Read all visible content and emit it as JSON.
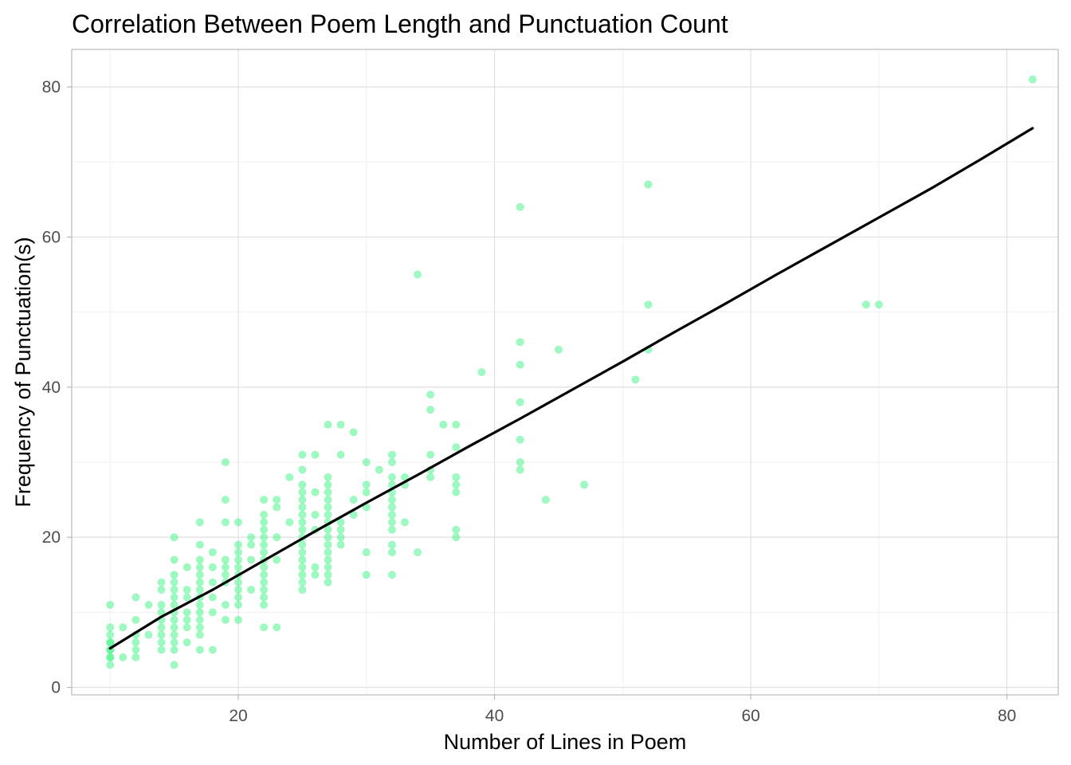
{
  "chart_data": {
    "type": "scatter",
    "title": "Correlation Between Poem Length and Punctuation Count",
    "xlabel": "Number of Lines in Poem",
    "ylabel": "Frequency of Punctuation(s)",
    "xlim": [
      7,
      84
    ],
    "ylim": [
      -1,
      85
    ],
    "x_ticks": [
      20,
      40,
      60,
      80
    ],
    "y_ticks": [
      0,
      20,
      40,
      60,
      80
    ],
    "x_tick_labels": [
      "20",
      "40",
      "60",
      "80"
    ],
    "y_tick_labels": [
      "0",
      "20",
      "40",
      "60",
      "80"
    ],
    "grid": true,
    "legend": "none",
    "point_color": "#3df584",
    "point_opacity": 0.5,
    "trend_color": "#000000",
    "points": [
      {
        "x": 10,
        "y": 3
      },
      {
        "x": 10,
        "y": 4
      },
      {
        "x": 10,
        "y": 5
      },
      {
        "x": 10,
        "y": 6
      },
      {
        "x": 10,
        "y": 7
      },
      {
        "x": 10,
        "y": 8
      },
      {
        "x": 10,
        "y": 11
      },
      {
        "x": 10,
        "y": 6
      },
      {
        "x": 10,
        "y": 5
      },
      {
        "x": 10,
        "y": 4
      },
      {
        "x": 11,
        "y": 8
      },
      {
        "x": 11,
        "y": 4
      },
      {
        "x": 12,
        "y": 12
      },
      {
        "x": 12,
        "y": 9
      },
      {
        "x": 12,
        "y": 7
      },
      {
        "x": 12,
        "y": 6
      },
      {
        "x": 12,
        "y": 5
      },
      {
        "x": 12,
        "y": 4
      },
      {
        "x": 13,
        "y": 11
      },
      {
        "x": 13,
        "y": 7
      },
      {
        "x": 14,
        "y": 14
      },
      {
        "x": 14,
        "y": 13
      },
      {
        "x": 14,
        "y": 11
      },
      {
        "x": 14,
        "y": 10
      },
      {
        "x": 14,
        "y": 9
      },
      {
        "x": 14,
        "y": 8
      },
      {
        "x": 14,
        "y": 7
      },
      {
        "x": 14,
        "y": 6
      },
      {
        "x": 14,
        "y": 5
      },
      {
        "x": 15,
        "y": 20
      },
      {
        "x": 15,
        "y": 17
      },
      {
        "x": 15,
        "y": 15
      },
      {
        "x": 15,
        "y": 14
      },
      {
        "x": 15,
        "y": 13
      },
      {
        "x": 15,
        "y": 12
      },
      {
        "x": 15,
        "y": 11
      },
      {
        "x": 15,
        "y": 10
      },
      {
        "x": 15,
        "y": 9
      },
      {
        "x": 15,
        "y": 8
      },
      {
        "x": 15,
        "y": 7
      },
      {
        "x": 15,
        "y": 6
      },
      {
        "x": 15,
        "y": 5
      },
      {
        "x": 15,
        "y": 3
      },
      {
        "x": 16,
        "y": 16
      },
      {
        "x": 16,
        "y": 13
      },
      {
        "x": 16,
        "y": 12
      },
      {
        "x": 16,
        "y": 10
      },
      {
        "x": 16,
        "y": 9
      },
      {
        "x": 16,
        "y": 8
      },
      {
        "x": 16,
        "y": 6
      },
      {
        "x": 17,
        "y": 22
      },
      {
        "x": 17,
        "y": 19
      },
      {
        "x": 17,
        "y": 17
      },
      {
        "x": 17,
        "y": 16
      },
      {
        "x": 17,
        "y": 15
      },
      {
        "x": 17,
        "y": 14
      },
      {
        "x": 17,
        "y": 13
      },
      {
        "x": 17,
        "y": 12
      },
      {
        "x": 17,
        "y": 11
      },
      {
        "x": 17,
        "y": 10
      },
      {
        "x": 17,
        "y": 9
      },
      {
        "x": 17,
        "y": 8
      },
      {
        "x": 17,
        "y": 7
      },
      {
        "x": 17,
        "y": 5
      },
      {
        "x": 18,
        "y": 18
      },
      {
        "x": 18,
        "y": 16
      },
      {
        "x": 18,
        "y": 14
      },
      {
        "x": 18,
        "y": 12
      },
      {
        "x": 18,
        "y": 10
      },
      {
        "x": 18,
        "y": 5
      },
      {
        "x": 19,
        "y": 30
      },
      {
        "x": 19,
        "y": 25
      },
      {
        "x": 19,
        "y": 22
      },
      {
        "x": 19,
        "y": 17
      },
      {
        "x": 19,
        "y": 16
      },
      {
        "x": 19,
        "y": 15
      },
      {
        "x": 19,
        "y": 14
      },
      {
        "x": 19,
        "y": 11
      },
      {
        "x": 19,
        "y": 9
      },
      {
        "x": 20,
        "y": 22
      },
      {
        "x": 20,
        "y": 19
      },
      {
        "x": 20,
        "y": 18
      },
      {
        "x": 20,
        "y": 17
      },
      {
        "x": 20,
        "y": 16
      },
      {
        "x": 20,
        "y": 15
      },
      {
        "x": 20,
        "y": 14
      },
      {
        "x": 20,
        "y": 13
      },
      {
        "x": 20,
        "y": 12
      },
      {
        "x": 20,
        "y": 11
      },
      {
        "x": 20,
        "y": 9
      },
      {
        "x": 21,
        "y": 20
      },
      {
        "x": 21,
        "y": 19
      },
      {
        "x": 21,
        "y": 17
      },
      {
        "x": 21,
        "y": 13
      },
      {
        "x": 22,
        "y": 25
      },
      {
        "x": 22,
        "y": 23
      },
      {
        "x": 22,
        "y": 22
      },
      {
        "x": 22,
        "y": 21
      },
      {
        "x": 22,
        "y": 20
      },
      {
        "x": 22,
        "y": 19
      },
      {
        "x": 22,
        "y": 18
      },
      {
        "x": 22,
        "y": 17
      },
      {
        "x": 22,
        "y": 16
      },
      {
        "x": 22,
        "y": 15
      },
      {
        "x": 22,
        "y": 14
      },
      {
        "x": 22,
        "y": 13
      },
      {
        "x": 22,
        "y": 12
      },
      {
        "x": 22,
        "y": 11
      },
      {
        "x": 22,
        "y": 8
      },
      {
        "x": 23,
        "y": 25
      },
      {
        "x": 23,
        "y": 24
      },
      {
        "x": 23,
        "y": 20
      },
      {
        "x": 23,
        "y": 17
      },
      {
        "x": 23,
        "y": 8
      },
      {
        "x": 24,
        "y": 28
      },
      {
        "x": 24,
        "y": 22
      },
      {
        "x": 25,
        "y": 31
      },
      {
        "x": 25,
        "y": 29
      },
      {
        "x": 25,
        "y": 27
      },
      {
        "x": 25,
        "y": 26
      },
      {
        "x": 25,
        "y": 25
      },
      {
        "x": 25,
        "y": 24
      },
      {
        "x": 25,
        "y": 23
      },
      {
        "x": 25,
        "y": 22
      },
      {
        "x": 25,
        "y": 21
      },
      {
        "x": 25,
        "y": 20
      },
      {
        "x": 25,
        "y": 19
      },
      {
        "x": 25,
        "y": 18
      },
      {
        "x": 25,
        "y": 17
      },
      {
        "x": 25,
        "y": 16
      },
      {
        "x": 25,
        "y": 15
      },
      {
        "x": 25,
        "y": 14
      },
      {
        "x": 25,
        "y": 13
      },
      {
        "x": 26,
        "y": 31
      },
      {
        "x": 26,
        "y": 26
      },
      {
        "x": 26,
        "y": 23
      },
      {
        "x": 26,
        "y": 21
      },
      {
        "x": 26,
        "y": 16
      },
      {
        "x": 26,
        "y": 15
      },
      {
        "x": 27,
        "y": 35
      },
      {
        "x": 27,
        "y": 28
      },
      {
        "x": 27,
        "y": 27
      },
      {
        "x": 27,
        "y": 26
      },
      {
        "x": 27,
        "y": 25
      },
      {
        "x": 27,
        "y": 24
      },
      {
        "x": 27,
        "y": 23
      },
      {
        "x": 27,
        "y": 22
      },
      {
        "x": 27,
        "y": 21
      },
      {
        "x": 27,
        "y": 20
      },
      {
        "x": 27,
        "y": 19
      },
      {
        "x": 27,
        "y": 18
      },
      {
        "x": 27,
        "y": 17
      },
      {
        "x": 27,
        "y": 16
      },
      {
        "x": 27,
        "y": 15
      },
      {
        "x": 27,
        "y": 14
      },
      {
        "x": 28,
        "y": 35
      },
      {
        "x": 28,
        "y": 31
      },
      {
        "x": 28,
        "y": 22
      },
      {
        "x": 28,
        "y": 21
      },
      {
        "x": 28,
        "y": 20
      },
      {
        "x": 28,
        "y": 19
      },
      {
        "x": 29,
        "y": 34
      },
      {
        "x": 29,
        "y": 25
      },
      {
        "x": 29,
        "y": 23
      },
      {
        "x": 30,
        "y": 30
      },
      {
        "x": 30,
        "y": 27
      },
      {
        "x": 30,
        "y": 26
      },
      {
        "x": 30,
        "y": 24
      },
      {
        "x": 30,
        "y": 18
      },
      {
        "x": 30,
        "y": 15
      },
      {
        "x": 31,
        "y": 29
      },
      {
        "x": 32,
        "y": 31
      },
      {
        "x": 32,
        "y": 30
      },
      {
        "x": 32,
        "y": 28
      },
      {
        "x": 32,
        "y": 27
      },
      {
        "x": 32,
        "y": 26
      },
      {
        "x": 32,
        "y": 25
      },
      {
        "x": 32,
        "y": 24
      },
      {
        "x": 32,
        "y": 23
      },
      {
        "x": 32,
        "y": 22
      },
      {
        "x": 32,
        "y": 21
      },
      {
        "x": 32,
        "y": 19
      },
      {
        "x": 32,
        "y": 18
      },
      {
        "x": 32,
        "y": 15
      },
      {
        "x": 33,
        "y": 28
      },
      {
        "x": 33,
        "y": 27
      },
      {
        "x": 33,
        "y": 22
      },
      {
        "x": 34,
        "y": 55
      },
      {
        "x": 34,
        "y": 18
      },
      {
        "x": 35,
        "y": 39
      },
      {
        "x": 35,
        "y": 37
      },
      {
        "x": 35,
        "y": 31
      },
      {
        "x": 35,
        "y": 29
      },
      {
        "x": 35,
        "y": 28
      },
      {
        "x": 36,
        "y": 35
      },
      {
        "x": 37,
        "y": 35
      },
      {
        "x": 37,
        "y": 32
      },
      {
        "x": 37,
        "y": 28
      },
      {
        "x": 37,
        "y": 27
      },
      {
        "x": 37,
        "y": 26
      },
      {
        "x": 37,
        "y": 21
      },
      {
        "x": 37,
        "y": 20
      },
      {
        "x": 39,
        "y": 42
      },
      {
        "x": 42,
        "y": 64
      },
      {
        "x": 42,
        "y": 46
      },
      {
        "x": 42,
        "y": 43
      },
      {
        "x": 42,
        "y": 38
      },
      {
        "x": 42,
        "y": 33
      },
      {
        "x": 42,
        "y": 30
      },
      {
        "x": 42,
        "y": 29
      },
      {
        "x": 44,
        "y": 25
      },
      {
        "x": 45,
        "y": 45
      },
      {
        "x": 47,
        "y": 27
      },
      {
        "x": 51,
        "y": 41
      },
      {
        "x": 52,
        "y": 67
      },
      {
        "x": 52,
        "y": 51
      },
      {
        "x": 52,
        "y": 45
      },
      {
        "x": 69,
        "y": 51
      },
      {
        "x": 70,
        "y": 51
      },
      {
        "x": 82,
        "y": 81
      }
    ],
    "trend_line": {
      "x": [
        10,
        14,
        18,
        22,
        26,
        30,
        34,
        38,
        42,
        46,
        50,
        54,
        58,
        62,
        66,
        70,
        74,
        78,
        82
      ],
      "y": [
        5.2,
        9.4,
        13.0,
        16.9,
        20.8,
        24.6,
        28.3,
        32.1,
        35.8,
        39.6,
        43.4,
        47.3,
        51.1,
        55.0,
        58.8,
        62.6,
        66.4,
        70.4,
        74.5
      ]
    }
  }
}
